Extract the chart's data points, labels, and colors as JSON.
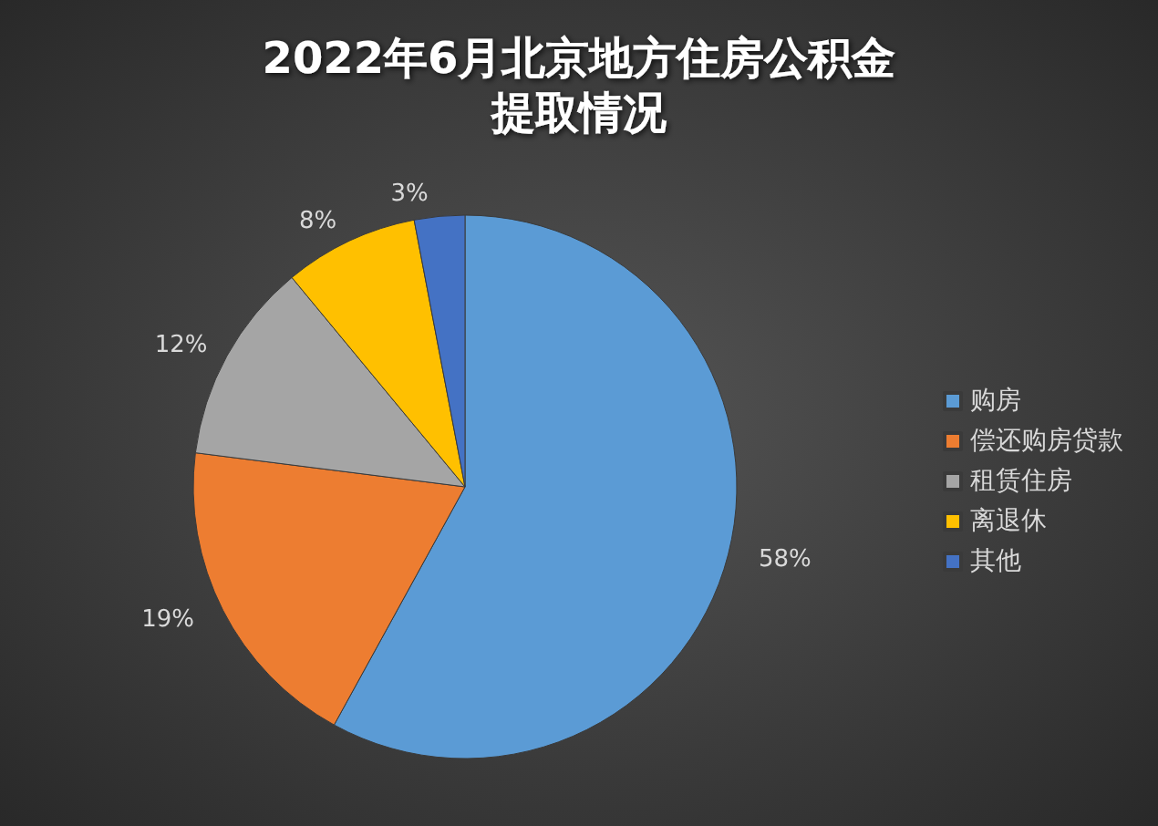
{
  "chart_data": {
    "type": "pie",
    "title": "2022年6月北京地方住房公积金提取情况",
    "categories": [
      "购房",
      "偿还购房贷款",
      "租赁住房",
      "离退休",
      "其他"
    ],
    "values": [
      58,
      19,
      12,
      8,
      3
    ],
    "colors": [
      "#5b9bd5",
      "#ed7d31",
      "#a5a5a5",
      "#ffc000",
      "#4472c4"
    ],
    "value_labels": [
      "58%",
      "19%",
      "12%",
      "8%",
      "3%"
    ],
    "legend": "right"
  }
}
